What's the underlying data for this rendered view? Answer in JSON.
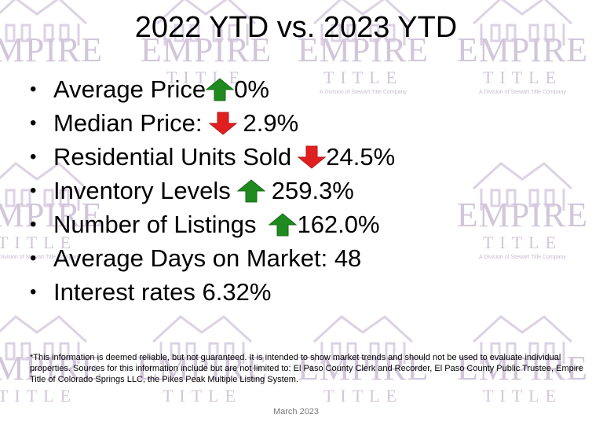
{
  "title": "2022 YTD vs. 2023 YTD",
  "watermark": {
    "brand": "EMPIRE",
    "word": "TITLE",
    "tagline": "A Division of Stewart Title Company"
  },
  "colors": {
    "up": "#1f8a1f",
    "down": "#e02020",
    "watermark": "#d2c6da"
  },
  "bullets": [
    {
      "label": "Average Price",
      "arrow": "up",
      "value": "0%"
    },
    {
      "label": "Median Price:",
      "arrow": "down",
      "value": "2.9%"
    },
    {
      "label": "Residential Units Sold",
      "arrow": "down",
      "value": "24.5%"
    },
    {
      "label": "Inventory Levels",
      "arrow": "up",
      "value": "259.3%"
    },
    {
      "label": "Number of Listings",
      "arrow": "up",
      "value": "162.0%"
    },
    {
      "label": "Average Days on Market: 48",
      "arrow": "",
      "value": ""
    },
    {
      "label": "Interest rates 6.32%",
      "arrow": "",
      "value": ""
    }
  ],
  "footnote": "*This information is deemed reliable, but not guaranteed.  It is intended to show market trends and should not be used to evaluate individual properties.  Sources for this information include but are not limited to: El Paso County Clerk and Recorder, El Paso County Public Trustee, Empire Title of Colorado Springs LLC, the Pikes Peak Multiple Listing System.",
  "date": "March 2023"
}
